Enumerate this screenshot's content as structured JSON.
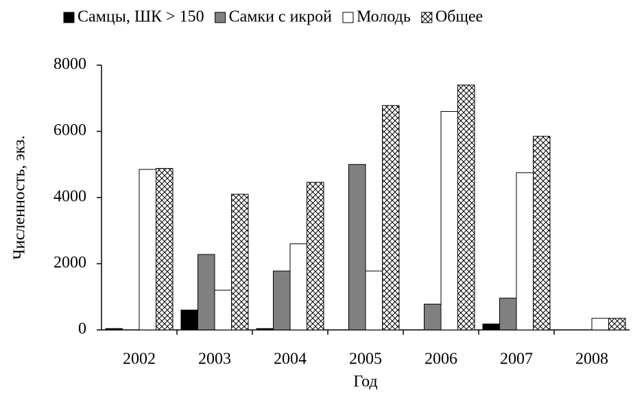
{
  "chart_data": {
    "type": "bar",
    "categories": [
      "2002",
      "2003",
      "2004",
      "2005",
      "2006",
      "2007",
      "2008"
    ],
    "x_label": "Год",
    "y_label": "Численность, экз.",
    "ylim": [
      0,
      8000
    ],
    "yticks": [
      0,
      2000,
      4000,
      6000,
      8000
    ],
    "series": [
      {
        "name": "Самцы, ШК > 150",
        "color": "#000000",
        "values": [
          40,
          600,
          40,
          0,
          0,
          180,
          0
        ]
      },
      {
        "name": "Самки с икрой",
        "color": "#808080",
        "values": [
          0,
          2280,
          1780,
          5000,
          780,
          960,
          0
        ]
      },
      {
        "name": "Молодь",
        "color": "#ffffff",
        "values": [
          4850,
          1200,
          2600,
          1780,
          6600,
          4750,
          350
        ]
      },
      {
        "name": "Общее",
        "color": "#ffffff",
        "hatch": "cross",
        "values": [
          4880,
          4100,
          4460,
          6780,
          7400,
          5850,
          350
        ]
      }
    ]
  }
}
